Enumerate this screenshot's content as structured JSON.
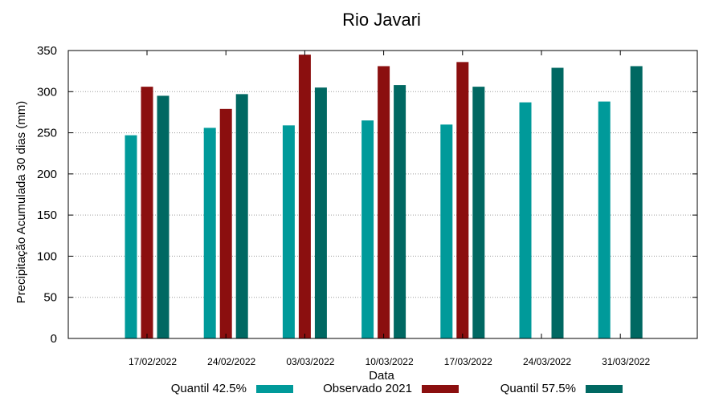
{
  "chart_data": {
    "type": "bar",
    "title": "Rio Javari",
    "xlabel": "Data",
    "ylabel": "Precipitação Acumulada 30 dias (mm)",
    "ylim": [
      0,
      350
    ],
    "yticks": [
      0,
      50,
      100,
      150,
      200,
      250,
      300,
      350
    ],
    "grid": true,
    "legend_position": "bottom",
    "categories": [
      "17/02/2022",
      "24/02/2022",
      "03/03/2022",
      "10/03/2022",
      "17/03/2022",
      "24/03/2022",
      "31/03/2022"
    ],
    "series": [
      {
        "name": "Quantil 42.5%",
        "color": "#009a9a",
        "values": [
          247,
          256,
          259,
          265,
          260,
          287,
          288
        ]
      },
      {
        "name": "Observado 2021",
        "color": "#8b0f0f",
        "values": [
          306,
          279,
          345,
          331,
          336,
          null,
          null
        ]
      },
      {
        "name": "Quantil 57.5%",
        "color": "#006862",
        "values": [
          295,
          297,
          305,
          308,
          306,
          329,
          331
        ]
      }
    ]
  }
}
